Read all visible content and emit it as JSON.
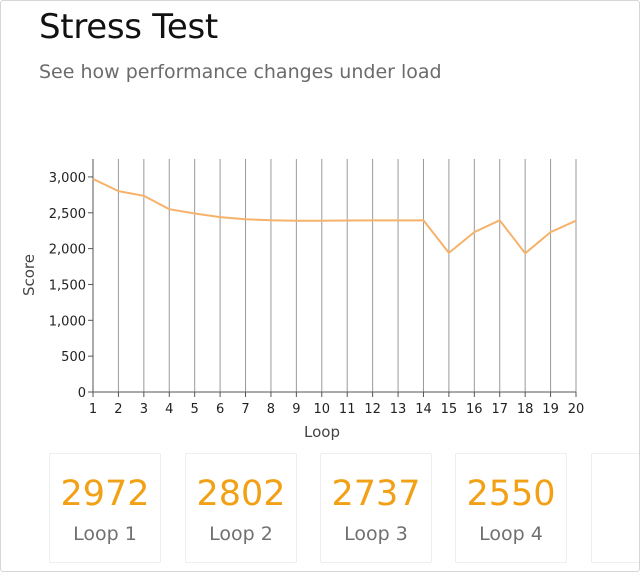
{
  "header": {
    "title": "Stress Test",
    "subtitle": "See how performance changes under load"
  },
  "chart_data": {
    "type": "line",
    "xlabel": "Loop",
    "ylabel": "Score",
    "x": [
      1,
      2,
      3,
      4,
      5,
      6,
      7,
      8,
      9,
      10,
      11,
      12,
      13,
      14,
      15,
      16,
      17,
      18,
      19,
      20
    ],
    "y_ticks": [
      "0",
      "500",
      "1,000",
      "1,500",
      "2,000",
      "2,500",
      "3,000"
    ],
    "ylim": [
      0,
      3250
    ],
    "grid": "vertical",
    "series": [
      {
        "color": "#f6b26b",
        "values": [
          2972,
          2802,
          2737,
          2550,
          2490,
          2440,
          2410,
          2395,
          2390,
          2390,
          2392,
          2393,
          2393,
          2393,
          1940,
          2230,
          2395,
          1935,
          2230,
          2390
        ]
      }
    ]
  },
  "tiles": [
    {
      "value": "2972",
      "label": "Loop 1"
    },
    {
      "value": "2802",
      "label": "Loop 2"
    },
    {
      "value": "2737",
      "label": "Loop 3"
    },
    {
      "value": "2550",
      "label": "Loop 4"
    },
    {
      "value": "",
      "label": ""
    }
  ]
}
